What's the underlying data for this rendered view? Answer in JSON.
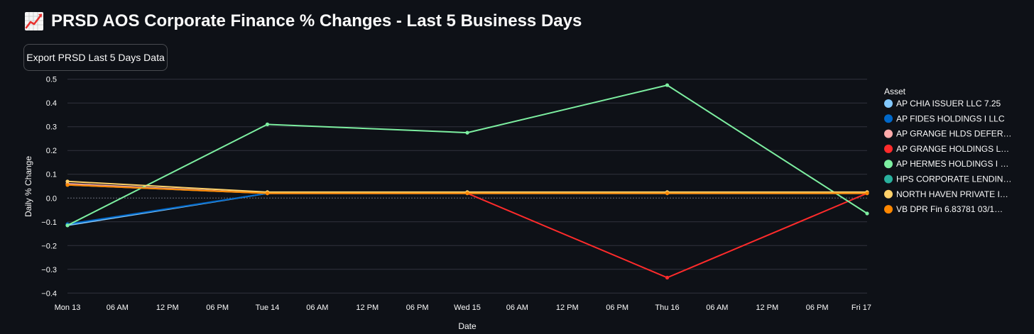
{
  "header": {
    "title": "PRSD AOS Corporate Finance % Changes - Last 5 Business Days",
    "title_icon": "chart-increasing-icon"
  },
  "toolbar": {
    "export_label": "Export PRSD Last 5 Days Data"
  },
  "chart_data": {
    "type": "line",
    "title": "",
    "xlabel": "Date",
    "ylabel": "Daily % Change",
    "legend_title": "Asset",
    "legend_position": "right",
    "ylim": [
      -0.42,
      0.52
    ],
    "yticks": [
      0.5,
      0.4,
      0.3,
      0.2,
      0.1,
      0.0,
      -0.1,
      -0.2,
      -0.3,
      -0.4
    ],
    "ytick_labels": [
      "0.5",
      "0.4",
      "0.3",
      "0.2",
      "0.1",
      "0.0",
      "−0.1",
      "−0.2",
      "−0.3",
      "−0.4"
    ],
    "x_hours_range": [
      0,
      96
    ],
    "xticks": [
      {
        "h": 0,
        "label": "Mon 13"
      },
      {
        "h": 6,
        "label": "06 AM"
      },
      {
        "h": 12,
        "label": "12 PM"
      },
      {
        "h": 18,
        "label": "06 PM"
      },
      {
        "h": 24,
        "label": "Tue 14"
      },
      {
        "h": 30,
        "label": "06 AM"
      },
      {
        "h": 36,
        "label": "12 PM"
      },
      {
        "h": 42,
        "label": "06 PM"
      },
      {
        "h": 48,
        "label": "Wed 15"
      },
      {
        "h": 54,
        "label": "06 AM"
      },
      {
        "h": 60,
        "label": "12 PM"
      },
      {
        "h": 66,
        "label": "06 PM"
      },
      {
        "h": 72,
        "label": "Thu 16"
      },
      {
        "h": 78,
        "label": "06 AM"
      },
      {
        "h": 84,
        "label": "12 PM"
      },
      {
        "h": 90,
        "label": "06 PM"
      },
      {
        "h": 96,
        "label": "Fri 17"
      }
    ],
    "x": [
      0,
      24,
      48,
      72,
      96
    ],
    "series": [
      {
        "name": "AP CHIA ISSUER LLC 7.25",
        "full_name": "AP CHIA ISSUER LLC 7.25",
        "color": "#83c9ff",
        "values": [
          -0.115,
          0.02,
          0.02,
          0.02,
          0.02
        ]
      },
      {
        "name": "AP FIDES HOLDINGS I LLC",
        "full_name": "AP FIDES HOLDINGS I LLC",
        "color": "#0068c9",
        "values": [
          -0.11,
          0.02,
          0.02,
          0.02,
          0.02
        ]
      },
      {
        "name": "AP GRANGE HLDS DEFER…",
        "full_name": "AP GRANGE HLDS DEFER…",
        "color": "#ffabab",
        "values": [
          0.06,
          0.02,
          0.02,
          0.02,
          0.02
        ]
      },
      {
        "name": "AP GRANGE HOLDINGS L…",
        "full_name": "AP GRANGE HOLDINGS L…",
        "color": "#ff2b2b",
        "values": [
          0.055,
          0.02,
          0.02,
          -0.335,
          0.02
        ]
      },
      {
        "name": "AP HERMES HOLDINGS I …",
        "full_name": "AP HERMES HOLDINGS I …",
        "color": "#7defa1",
        "values": [
          -0.115,
          0.31,
          0.275,
          0.475,
          -0.065
        ]
      },
      {
        "name": "HPS CORPORATE LENDIN…",
        "full_name": "HPS CORPORATE LENDIN…",
        "color": "#29b09d",
        "values": [
          0.055,
          0.02,
          0.02,
          0.02,
          0.02
        ]
      },
      {
        "name": "NORTH HAVEN PRIVATE I…",
        "full_name": "NORTH HAVEN PRIVATE I…",
        "color": "#ffd16a",
        "values": [
          0.07,
          0.025,
          0.025,
          0.025,
          0.025
        ]
      },
      {
        "name": "VB DPR Fin 6.83781 03/1…",
        "full_name": "VB DPR Fin 6.83781 03/1…",
        "color": "#ff8700",
        "values": [
          0.055,
          0.02,
          0.02,
          0.02,
          0.02
        ]
      }
    ]
  },
  "theme": {
    "background": "#0e1117",
    "text": "#fafafa",
    "grid": "#31333f",
    "zero_line": "#6b6f7a"
  }
}
